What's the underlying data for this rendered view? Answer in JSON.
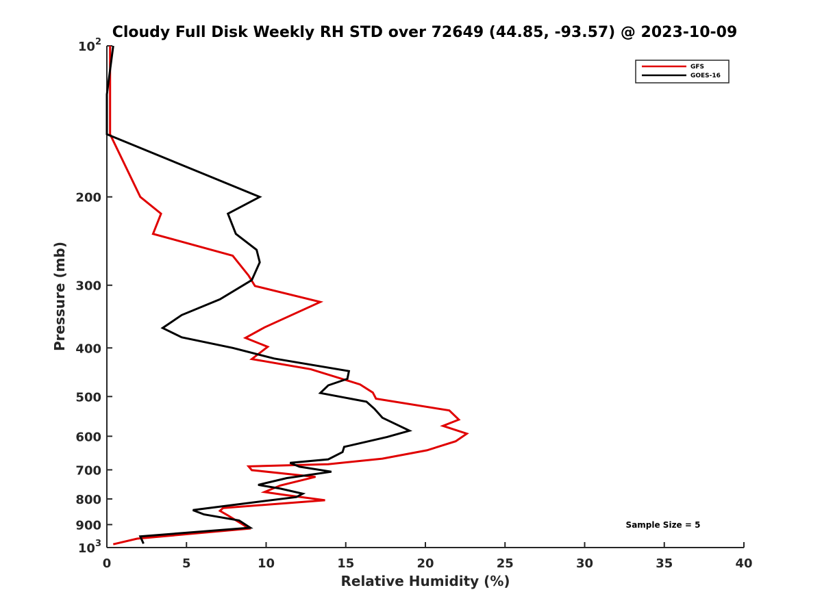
{
  "chart_data": {
    "type": "line",
    "title": "Cloudy Full Disk Weekly RH STD over 72649 (44.85, -93.57) @ 2023-10-09",
    "xlabel": "Relative Humidity (%)",
    "ylabel": "Pressure (mb)",
    "xlim": [
      0,
      40
    ],
    "ylim": [
      100,
      1000
    ],
    "yscale": "log",
    "y_reversed": true,
    "grid": false,
    "legend_position": "top-right",
    "x_ticks": [
      0,
      5,
      10,
      15,
      20,
      25,
      30,
      35,
      40
    ],
    "x_tick_labels": [
      "0",
      "5",
      "10",
      "15",
      "20",
      "25",
      "30",
      "35",
      "40"
    ],
    "y_ticks": [
      100,
      200,
      300,
      400,
      500,
      600,
      700,
      800,
      900,
      1000
    ],
    "y_tick_labels": [
      {
        "base": "10",
        "exp": "2"
      },
      {
        "base": "200",
        "exp": ""
      },
      {
        "base": "300",
        "exp": ""
      },
      {
        "base": "400",
        "exp": ""
      },
      {
        "base": "500",
        "exp": ""
      },
      {
        "base": "600",
        "exp": ""
      },
      {
        "base": "700",
        "exp": ""
      },
      {
        "base": "800",
        "exp": ""
      },
      {
        "base": "900",
        "exp": ""
      },
      {
        "base": "10",
        "exp": "3"
      }
    ],
    "annotation": "Sample Size = 5",
    "series": [
      {
        "name": "GFS",
        "color": "#e00000",
        "points": [
          [
            0.2,
            100
          ],
          [
            0.2,
            125
          ],
          [
            0.2,
            150
          ],
          [
            2.1,
            200
          ],
          [
            3.4,
            216
          ],
          [
            2.9,
            237
          ],
          [
            7.9,
            262
          ],
          [
            8.9,
            287
          ],
          [
            9.3,
            301
          ],
          [
            13.4,
            324
          ],
          [
            9.9,
            364
          ],
          [
            8.7,
            382
          ],
          [
            10.1,
            398
          ],
          [
            9.1,
            421
          ],
          [
            12.8,
            441
          ],
          [
            15.9,
            473
          ],
          [
            16.7,
            491
          ],
          [
            16.9,
            505
          ],
          [
            21.5,
            533
          ],
          [
            22.1,
            556
          ],
          [
            21.1,
            572
          ],
          [
            22.6,
            593
          ],
          [
            21.9,
            614
          ],
          [
            20.1,
            640
          ],
          [
            17.3,
            665
          ],
          [
            13.9,
            682
          ],
          [
            8.9,
            689
          ],
          [
            9.1,
            701
          ],
          [
            13.1,
            723
          ],
          [
            10.9,
            752
          ],
          [
            9.9,
            775
          ],
          [
            11.1,
            785
          ],
          [
            13.7,
            805
          ],
          [
            7.3,
            834
          ],
          [
            7.1,
            845
          ],
          [
            7.6,
            863
          ],
          [
            8.6,
            902
          ],
          [
            8.9,
            917
          ],
          [
            1.9,
            960
          ],
          [
            0.4,
            985
          ]
        ]
      },
      {
        "name": "GOES-16",
        "color": "#000000",
        "points": [
          [
            0.4,
            100
          ],
          [
            0.0,
            125
          ],
          [
            0.0,
            150
          ],
          [
            9.6,
            200
          ],
          [
            7.6,
            216
          ],
          [
            8.1,
            237
          ],
          [
            9.4,
            255
          ],
          [
            9.6,
            270
          ],
          [
            9.1,
            293
          ],
          [
            7.1,
            320
          ],
          [
            4.7,
            344
          ],
          [
            3.5,
            365
          ],
          [
            4.7,
            381
          ],
          [
            7.9,
            400
          ],
          [
            10.5,
            420
          ],
          [
            15.2,
            445
          ],
          [
            15.1,
            461
          ],
          [
            13.9,
            475
          ],
          [
            13.4,
            492
          ],
          [
            16.3,
            512
          ],
          [
            16.8,
            529
          ],
          [
            17.3,
            551
          ],
          [
            19.0,
            585
          ],
          [
            17.6,
            602
          ],
          [
            14.9,
            630
          ],
          [
            14.8,
            645
          ],
          [
            13.9,
            667
          ],
          [
            11.5,
            678
          ],
          [
            12.1,
            690
          ],
          [
            14.1,
            706
          ],
          [
            11.3,
            727
          ],
          [
            9.5,
            750
          ],
          [
            10.9,
            763
          ],
          [
            12.3,
            781
          ],
          [
            11.9,
            793
          ],
          [
            8.1,
            821
          ],
          [
            5.4,
            842
          ],
          [
            6.1,
            859
          ],
          [
            8.3,
            883
          ],
          [
            9.0,
            913
          ],
          [
            2.1,
            950
          ],
          [
            2.3,
            982
          ]
        ]
      }
    ]
  }
}
